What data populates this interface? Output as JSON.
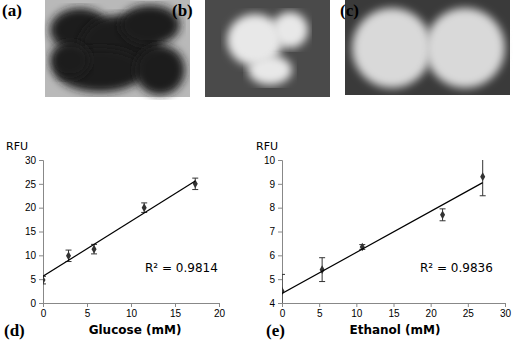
{
  "image_panels": {
    "labels": [
      "(a)",
      "(b)",
      "(c)"
    ]
  },
  "chart_data": [
    {
      "type": "scatter",
      "title": "(d)",
      "x_label": "Glucose (mM)",
      "y_label": "RFU",
      "xlim": [
        0,
        20
      ],
      "xticks": [
        0,
        5,
        10,
        15,
        20
      ],
      "ylim": [
        0,
        30
      ],
      "yticks": [
        0,
        5,
        10,
        15,
        20,
        25,
        30
      ],
      "annotations": [
        {
          "text": "R² = 0.9814"
        }
      ],
      "series": [
        {
          "type": "scatter",
          "marker": "diamond",
          "color": "#333333",
          "x": [
            0,
            2.9,
            5.8,
            11.5,
            17.3
          ],
          "values": [
            4.8,
            9.9,
            11.3,
            20,
            25
          ],
          "errors": [
            0.8,
            1.2,
            1,
            1,
            1.2
          ]
        },
        {
          "type": "line",
          "line_style": "solid",
          "color": "#000000",
          "x": [
            0,
            17.3
          ],
          "values": [
            5.6,
            25.6
          ]
        }
      ]
    },
    {
      "type": "scatter",
      "title": "(e)",
      "x_label": "Ethanol (mM)",
      "y_label": "RFU",
      "xlim": [
        0,
        30
      ],
      "xticks": [
        0,
        5,
        10,
        15,
        20,
        25,
        30
      ],
      "ylim": [
        4,
        10
      ],
      "yticks": [
        4,
        5,
        6,
        7,
        8,
        9,
        10
      ],
      "annotations": [
        {
          "text": "R² = 0.9836"
        }
      ],
      "series": [
        {
          "type": "scatter",
          "marker": "diamond",
          "color": "#333333",
          "x": [
            0,
            5.4,
            10.8,
            21.6,
            27
          ],
          "values": [
            4.5,
            5.4,
            6.35,
            7.7,
            9.3
          ],
          "errors": [
            0.7,
            0.5,
            0.1,
            0.25,
            0.8
          ]
        },
        {
          "type": "line",
          "line_style": "solid",
          "color": "#000000",
          "x": [
            0,
            27
          ],
          "values": [
            4.4,
            9.05
          ]
        }
      ]
    }
  ]
}
